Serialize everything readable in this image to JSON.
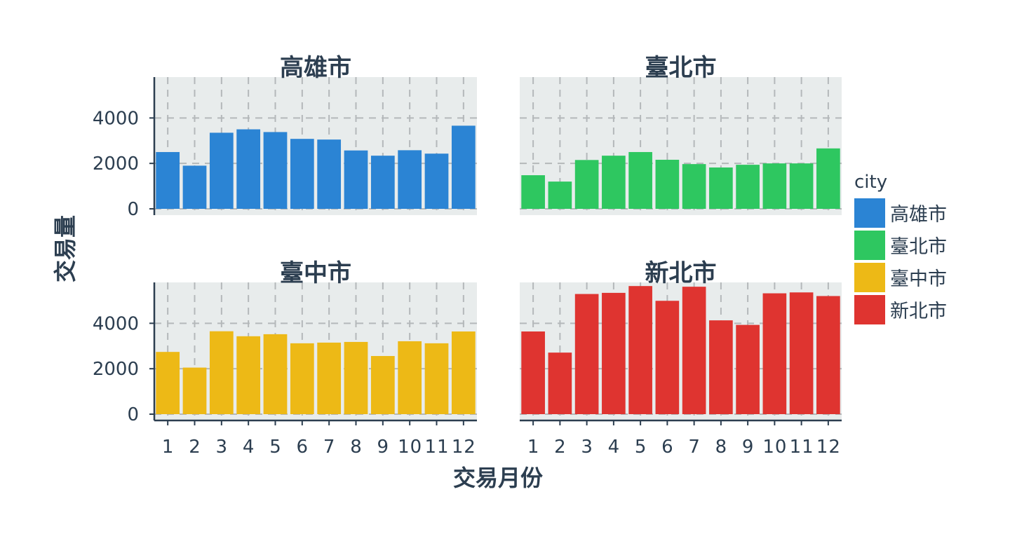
{
  "chart_data": {
    "type": "bar",
    "facet_layout": "2x2",
    "categories": [
      "1",
      "2",
      "3",
      "4",
      "5",
      "6",
      "7",
      "8",
      "9",
      "10",
      "11",
      "12"
    ],
    "xlabel": "交易月份",
    "ylabel": "交易量",
    "ylim": [
      0,
      5800
    ],
    "yticks": [
      0,
      2000,
      4000
    ],
    "grid": "dashed",
    "legend": {
      "title": "city",
      "position": "right"
    },
    "panels": [
      {
        "title": "高雄市",
        "color": "#2b84d4",
        "values": [
          2500,
          1900,
          3350,
          3500,
          3380,
          3080,
          3050,
          2570,
          2340,
          2580,
          2430,
          3660
        ]
      },
      {
        "title": "臺北市",
        "color": "#2ec760",
        "values": [
          1480,
          1200,
          2150,
          2340,
          2500,
          2160,
          1970,
          1820,
          1940,
          2000,
          2000,
          2660
        ]
      },
      {
        "title": "臺中市",
        "color": "#edb916",
        "values": [
          2740,
          2050,
          3650,
          3430,
          3520,
          3120,
          3150,
          3180,
          2560,
          3210,
          3120,
          3640
        ]
      },
      {
        "title": "新北市",
        "color": "#df3430",
        "values": [
          3640,
          2710,
          5290,
          5340,
          5640,
          4990,
          5610,
          4130,
          3930,
          5320,
          5360,
          5200
        ]
      }
    ]
  }
}
